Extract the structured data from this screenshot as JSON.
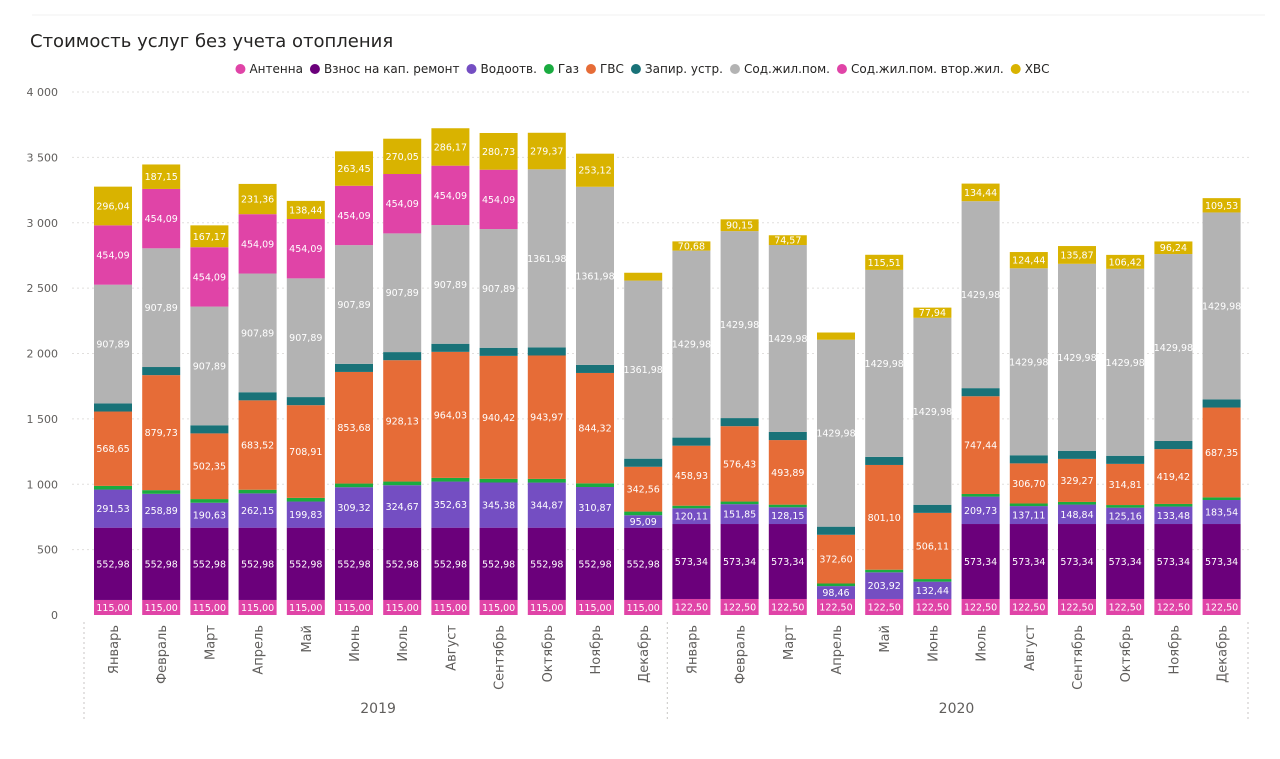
{
  "chart_data": {
    "type": "bar",
    "stacked": true,
    "title": "Стоимость услуг без учета отопления",
    "legend_position": "top",
    "ylim": [
      0,
      4000
    ],
    "yticks": [
      0,
      500,
      1000,
      1500,
      2000,
      2500,
      3000,
      3500,
      4000
    ],
    "ytick_labels": [
      "0",
      "500",
      "1 000",
      "1 500",
      "2 000",
      "2 500",
      "3 000",
      "3 500",
      "4 000"
    ],
    "grid": true,
    "categories": [
      "Январь",
      "Февраль",
      "Март",
      "Апрель",
      "Май",
      "Июнь",
      "Июль",
      "Август",
      "Сентябрь",
      "Октябрь",
      "Ноябрь",
      "Декабрь",
      "Январь",
      "Февраль",
      "Март",
      "Апрель",
      "Май",
      "Июнь",
      "Июль",
      "Август",
      "Сентябрь",
      "Октябрь",
      "Ноябрь",
      "Декабрь"
    ],
    "groups": [
      {
        "label": "2019",
        "start": 0,
        "count": 12
      },
      {
        "label": "2020",
        "start": 12,
        "count": 12
      }
    ],
    "series": [
      {
        "name": "Антенна",
        "color": "#E044A7",
        "values": [
          115,
          115,
          115,
          115,
          115,
          115,
          115,
          115,
          115,
          115,
          115,
          115,
          122.5,
          122.5,
          122.5,
          122.5,
          122.5,
          122.5,
          122.5,
          122.5,
          122.5,
          122.5,
          122.5,
          122.5
        ],
        "labels": [
          "115,00",
          "115,00",
          "115,00",
          "115,00",
          "115,00",
          "115,00",
          "115,00",
          "115,00",
          "115,00",
          "115,00",
          "115,00",
          "115,00",
          "122,50",
          "122,50",
          "122,50",
          "122,50",
          "122,50",
          "122,50",
          "122,50",
          "122,50",
          "122,50",
          "122,50",
          "122,50",
          "122,50"
        ]
      },
      {
        "name": "Взнос на кап. ремонт",
        "color": "#6B007B",
        "values": [
          552.98,
          552.98,
          552.98,
          552.98,
          552.98,
          552.98,
          552.98,
          552.98,
          552.98,
          552.98,
          552.98,
          552.98,
          573.34,
          573.34,
          573.34,
          0,
          0,
          0,
          573.34,
          573.34,
          573.34,
          573.34,
          573.34,
          573.34
        ],
        "labels": [
          "552,98",
          "552,98",
          "552,98",
          "552,98",
          "552,98",
          "552,98",
          "552,98",
          "552,98",
          "552,98",
          "552,98",
          "552,98",
          "552,98",
          "573,34",
          "573,34",
          "573,34",
          "",
          "",
          "",
          "573,34",
          "573,34",
          "573,34",
          "573,34",
          "573,34",
          "573,34"
        ]
      },
      {
        "name": "Водоотв.",
        "color": "#744EC2",
        "values": [
          291.53,
          258.89,
          190.63,
          262.15,
          199.83,
          309.32,
          324.67,
          352.63,
          345.38,
          344.87,
          310.87,
          95.09,
          120.11,
          151.85,
          128.15,
          98.46,
          203.92,
          132.44,
          209.73,
          137.11,
          148.84,
          125.16,
          133.48,
          183.54
        ],
        "labels": [
          "291,53",
          "258,89",
          "190,63",
          "262,15",
          "199,83",
          "309,32",
          "324,67",
          "352,63",
          "345,38",
          "344,87",
          "310,87",
          "95,09",
          "120,11",
          "151,85",
          "128,15",
          "98,46",
          "203,92",
          "132,44",
          "209,73",
          "137,11",
          "148,84",
          "125,16",
          "133,48",
          "183,54"
        ]
      },
      {
        "name": "Газ",
        "color": "#1AAB40",
        "values": [
          28,
          28,
          28,
          28,
          28,
          28,
          28,
          28,
          28,
          28,
          28,
          28,
          20,
          20,
          20,
          20,
          20,
          20,
          20,
          20,
          20,
          20,
          20,
          20
        ],
        "labels": [
          "",
          "",
          "",
          "",
          "",
          "",
          "",
          "",
          "",
          "",
          "",
          "",
          "",
          "",
          "",
          "",
          "",
          "",
          "",
          "",
          "",
          "",
          "",
          ""
        ]
      },
      {
        "name": "ГВС",
        "color": "#E66C37",
        "values": [
          568.65,
          879.73,
          502.35,
          683.52,
          708.91,
          853.68,
          928.13,
          964.03,
          940.42,
          943.97,
          844.32,
          342.56,
          458.93,
          576.43,
          493.89,
          372.6,
          801.1,
          506.11,
          747.44,
          306.7,
          329.27,
          314.81,
          419.42,
          687.35
        ],
        "labels": [
          "568,65",
          "879,73",
          "502,35",
          "683,52",
          "708,91",
          "853,68",
          "928,13",
          "964,03",
          "940,42",
          "943,97",
          "844,32",
          "342,56",
          "458,93",
          "576,43",
          "493,89",
          "372,60",
          "801,10",
          "506,11",
          "747,44",
          "306,70",
          "329,27",
          "314,81",
          "419,42",
          "687,35"
        ]
      },
      {
        "name": "Запир. устр.",
        "color": "#197278",
        "values": [
          62,
          62,
          62,
          62,
          62,
          62,
          62,
          62,
          62,
          62,
          62,
          62,
          62,
          62,
          62,
          62,
          62,
          62,
          62,
          62,
          62,
          62,
          62,
          62
        ],
        "labels": [
          "",
          "",
          "",
          "",
          "",
          "",
          "",
          "",
          "",
          "",
          "",
          "",
          "",
          "",
          "",
          "",
          "",
          "",
          "",
          "",
          "",
          "",
          "",
          ""
        ]
      },
      {
        "name": "Сод.жил.пом.",
        "color": "#B3B3B3",
        "values": [
          907.89,
          907.89,
          907.89,
          907.89,
          907.89,
          907.89,
          907.89,
          907.89,
          907.89,
          1361.98,
          1361.98,
          1361.98,
          1429.98,
          1429.98,
          1429.98,
          1429.98,
          1429.98,
          1429.98,
          1429.98,
          1429.98,
          1429.98,
          1429.98,
          1429.98,
          1429.98
        ],
        "labels": [
          "907,89",
          "907,89",
          "907,89",
          "907,89",
          "907,89",
          "907,89",
          "907,89",
          "907,89",
          "907,89",
          "1361,98",
          "1361,98",
          "1361,98",
          "1429,98",
          "1429,98",
          "1429,98",
          "1429,98",
          "1429,98",
          "1429,98",
          "1429,98",
          "1429,98",
          "1429,98",
          "1429,98",
          "1429,98",
          "1429,98"
        ]
      },
      {
        "name": "Сод.жил.пом. втор.жил.",
        "color": "#E044A7",
        "values": [
          454.09,
          454.09,
          454.09,
          454.09,
          454.09,
          454.09,
          454.09,
          454.09,
          454.09,
          0,
          0,
          0,
          0,
          0,
          0,
          0,
          0,
          0,
          0,
          0,
          0,
          0,
          0,
          0
        ],
        "labels": [
          "454,09",
          "454,09",
          "454,09",
          "454,09",
          "454,09",
          "454,09",
          "454,09",
          "454,09",
          "454,09",
          "",
          "",
          "",
          "",
          "",
          "",
          "",
          "",
          "",
          "",
          "",
          "",
          "",
          "",
          ""
        ]
      },
      {
        "name": "ХВС",
        "color": "#D9B300",
        "values": [
          296.04,
          187.15,
          167.17,
          231.36,
          138.44,
          263.45,
          270.05,
          286.17,
          280.73,
          279.37,
          253.12,
          60,
          70.68,
          90.15,
          74.57,
          55,
          115.51,
          77.94,
          134.44,
          124.44,
          135.87,
          106.42,
          96.24,
          109.53
        ],
        "labels": [
          "296,04",
          "187,15",
          "167,17",
          "231,36",
          "138,44",
          "263,45",
          "270,05",
          "286,17",
          "280,73",
          "279,37",
          "253,12",
          "",
          "70,68",
          "90,15",
          "74,57",
          "",
          "115,51",
          "77,94",
          "134,44",
          "124,44",
          "135,87",
          "106,42",
          "96,24",
          "109,53"
        ]
      }
    ]
  }
}
